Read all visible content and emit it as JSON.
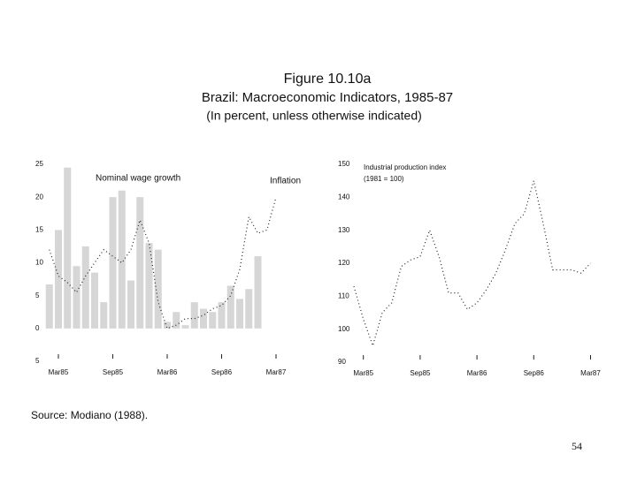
{
  "header": {
    "figure": "Figure 10.10a",
    "title": "Brazil: Macroeconomic Indicators, 1985-87",
    "subtitle": "(In percent, unless otherwise indicated)"
  },
  "chart_data": [
    {
      "type": "bar_line",
      "annotations": [
        "Nominal wage growth",
        "Inflation"
      ],
      "categories": [
        null,
        "Mar85",
        null,
        null,
        null,
        null,
        null,
        "Sep85",
        null,
        null,
        null,
        null,
        null,
        "Mar86",
        null,
        null,
        null,
        null,
        null,
        "Sep86",
        null,
        null,
        null,
        null,
        null,
        "Mar87"
      ],
      "series": [
        {
          "name": "Nominal wage growth",
          "kind": "bar",
          "color": "#d6d6d6",
          "values": [
            6.7,
            15,
            24.5,
            9.5,
            12.5,
            8.5,
            4,
            20,
            21,
            7.3,
            20,
            13,
            12,
            1,
            2.5,
            0.5,
            4,
            3,
            2.5,
            4,
            6.5,
            4.5,
            6,
            11,
            null,
            null
          ]
        },
        {
          "name": "Inflation",
          "kind": "line",
          "color": "#222222",
          "values": [
            12,
            8,
            7,
            5.5,
            8,
            10,
            12,
            11,
            10,
            12,
            16.5,
            13,
            4,
            0,
            0.5,
            1.5,
            1.5,
            2,
            3,
            3.5,
            5,
            9,
            17,
            14.5,
            15,
            20
          ]
        }
      ],
      "ylim": [
        -5,
        25
      ],
      "yticks": [
        {
          "value": -5,
          "label": "5"
        },
        0,
        5,
        10,
        15,
        20,
        25
      ]
    },
    {
      "type": "line",
      "annotations": [
        "Industrial production index",
        "(1981 = 100)"
      ],
      "categories": [
        null,
        "Mar85",
        null,
        null,
        null,
        null,
        null,
        "Sep85",
        null,
        null,
        null,
        null,
        null,
        "Mar86",
        null,
        null,
        null,
        null,
        null,
        "Sep86",
        null,
        null,
        null,
        null,
        null,
        "Mar87"
      ],
      "series": [
        {
          "name": "Industrial production index",
          "kind": "line",
          "color": "#222222",
          "values": [
            113,
            103,
            95,
            105,
            108,
            119,
            121,
            122,
            130,
            122,
            111,
            111,
            106,
            108,
            112,
            117,
            124,
            132,
            135,
            145,
            132,
            118,
            118,
            118,
            117,
            120
          ]
        }
      ],
      "ylim": [
        90,
        150
      ],
      "yticks": [
        90,
        100,
        110,
        120,
        130,
        140,
        150
      ]
    }
  ],
  "source": "Source: Modiano (1988).",
  "page_number": "54"
}
